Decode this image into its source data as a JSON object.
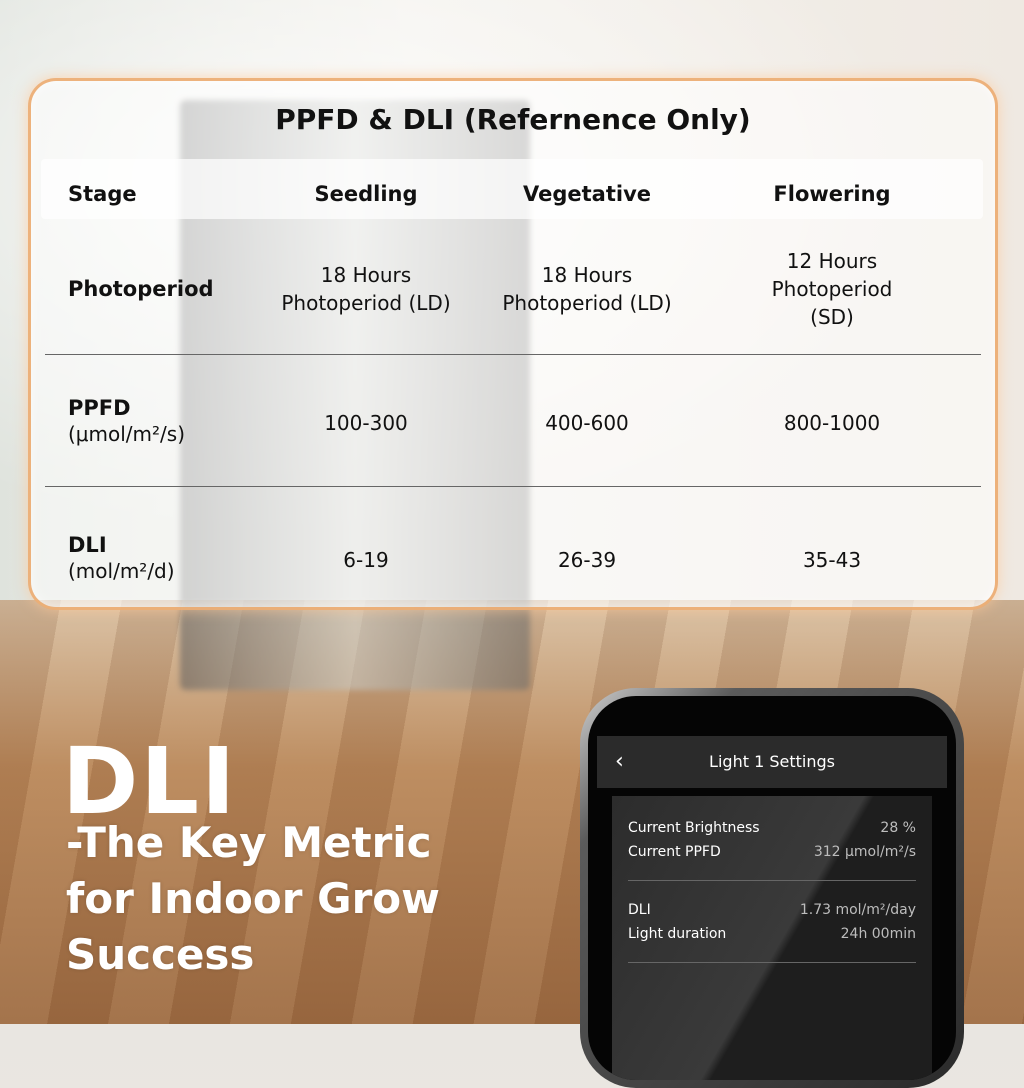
{
  "table": {
    "title": "PPFD & DLI (Refernence Only)",
    "headers": [
      "Stage",
      "Seedling",
      "Vegetative",
      "Flowering"
    ],
    "rows": [
      {
        "label": "Photoperiod",
        "unit": "",
        "values": [
          [
            "18 Hours",
            "Photoperiod (LD)"
          ],
          [
            "18 Hours",
            "Photoperiod (LD)"
          ],
          [
            "12 Hours",
            "Photoperiod (SD)"
          ]
        ]
      },
      {
        "label": "PPFD",
        "unit": "(μmol/m²/s)",
        "values": [
          "100-300",
          "400-600",
          "800-1000"
        ]
      },
      {
        "label": "DLI",
        "unit": "(mol/m²/d)",
        "values": [
          "6-19",
          "26-39",
          "35-43"
        ]
      }
    ]
  },
  "headline": {
    "big": "DLI",
    "lines": [
      "-The Key Metric",
      "for Indoor Grow",
      "Success"
    ]
  },
  "phone": {
    "title": "Light 1 Settings",
    "back_icon": "chevron-left-icon",
    "items": [
      {
        "label": "Current Brightness",
        "value": "28 %"
      },
      {
        "label": "Current PPFD",
        "value": "312 μmol/m²/s"
      },
      {
        "label": "DLI",
        "value": "1.73 mol/m²/day"
      },
      {
        "label": "Light duration",
        "value": "24h 00min"
      }
    ]
  }
}
